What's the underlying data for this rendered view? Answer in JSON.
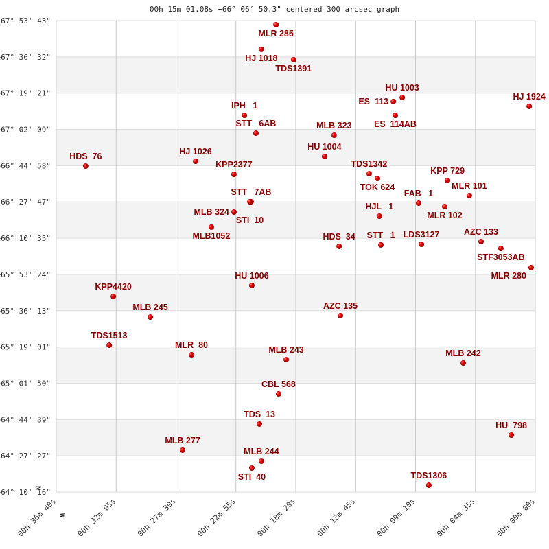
{
  "chart_data": {
    "type": "scatter",
    "title": "00h 15m 01.08s +66° 06′ 50.3\" centered 300 arcsec graph",
    "xlabel": "",
    "ylabel": "",
    "x_units": "right ascension seconds (time)",
    "y_units": "declination degrees",
    "xlim": [
      2200,
      0
    ],
    "ylim": [
      64.1711,
      67.8953
    ],
    "grid": true,
    "x_tick_labels": [
      "00h 36m 40s",
      "00h 32m 05s",
      "00h 27m 30s",
      "00h 22m 55s",
      "00h 18m 20s",
      "00h 13m 45s",
      "00h 09m 10s",
      "00h 04m 35s",
      "00h 00m 00s"
    ],
    "y_tick_labels": [
      "+67° 53' 43\"",
      "+67° 36' 32\"",
      "+67° 19' 21\"",
      "+67° 02' 09\"",
      "+66° 44' 58\"",
      "+66° 27' 47\"",
      "+66° 10' 35\"",
      "+65° 53' 24\"",
      "+65° 36' 13\"",
      "+65° 19' 01\"",
      "+65° 01' 50\"",
      "+64° 44' 39\"",
      "+64° 27' 27\"",
      "+64° 10' 16\""
    ],
    "direction_labels": {
      "north": "N",
      "west": "W"
    },
    "colors": {
      "point": "#dd0000",
      "label": "#8b0000",
      "band": "#f3f3f3",
      "grid": "#cccccc"
    },
    "points": [
      {
        "name": "MLR 285",
        "ra": 1191,
        "dec": 67.863
      },
      {
        "name": "HJ 1018",
        "ra": 1258,
        "dec": 67.668
      },
      {
        "name": "TDS1391",
        "ra": 1110,
        "dec": 67.586
      },
      {
        "name": "HU 1003",
        "ra": 611,
        "dec": 67.288
      },
      {
        "name": "ES  113",
        "ra": 652,
        "dec": 67.256
      },
      {
        "name": "ES  114AB",
        "ra": 643,
        "dec": 67.147
      },
      {
        "name": "HJ 1924",
        "ra": 28,
        "dec": 67.218
      },
      {
        "name": "IPH   1",
        "ra": 1336,
        "dec": 67.147
      },
      {
        "name": "STT   6AB",
        "ra": 1283,
        "dec": 67.006
      },
      {
        "name": "MLB 323",
        "ra": 924,
        "dec": 66.99
      },
      {
        "name": "HU 1004",
        "ra": 968,
        "dec": 66.822
      },
      {
        "name": "HDS  76",
        "ra": 2065,
        "dec": 66.746
      },
      {
        "name": "HJ 1026",
        "ra": 1560,
        "dec": 66.784
      },
      {
        "name": "KPP2377",
        "ra": 1384,
        "dec": 66.681
      },
      {
        "name": "TDS1342",
        "ra": 763,
        "dec": 66.686
      },
      {
        "name": "TOK 624",
        "ra": 725,
        "dec": 66.648
      },
      {
        "name": "KPP 729",
        "ra": 403,
        "dec": 66.632
      },
      {
        "name": "MLR 101",
        "ra": 303,
        "dec": 66.513
      },
      {
        "name": "STT   7AB",
        "ra": 1305,
        "dec": 66.464
      },
      {
        "name": "STI  10",
        "ra": 1311,
        "dec": 66.464
      },
      {
        "name": "MLB 324",
        "ra": 1384,
        "dec": 66.383
      },
      {
        "name": "FAB   1",
        "ra": 536,
        "dec": 66.453
      },
      {
        "name": "MLR 102",
        "ra": 416,
        "dec": 66.426
      },
      {
        "name": "HJL   1",
        "ra": 716,
        "dec": 66.35
      },
      {
        "name": "MLB1052",
        "ra": 1488,
        "dec": 66.264
      },
      {
        "name": "HDS  34",
        "ra": 901,
        "dec": 66.112
      },
      {
        "name": "STT   1",
        "ra": 709,
        "dec": 66.123
      },
      {
        "name": "LDS3127",
        "ra": 523,
        "dec": 66.128
      },
      {
        "name": "AZC 133",
        "ra": 249,
        "dec": 66.15
      },
      {
        "name": "STF3053AB",
        "ra": 158,
        "dec": 66.095
      },
      {
        "name": "MLR 280",
        "ra": 19,
        "dec": 65.944
      },
      {
        "name": "HU 1006",
        "ra": 1302,
        "dec": 65.803
      },
      {
        "name": "KPP4420",
        "ra": 1938,
        "dec": 65.716
      },
      {
        "name": "MLB 245",
        "ra": 1768,
        "dec": 65.553
      },
      {
        "name": "AZC 135",
        "ra": 895,
        "dec": 65.564
      },
      {
        "name": "TDS1513",
        "ra": 1957,
        "dec": 65.331
      },
      {
        "name": "MLR  80",
        "ra": 1579,
        "dec": 65.255
      },
      {
        "name": "MLB 243",
        "ra": 1144,
        "dec": 65.217
      },
      {
        "name": "MLB 242",
        "ra": 331,
        "dec": 65.19
      },
      {
        "name": "CBL 568",
        "ra": 1179,
        "dec": 64.946
      },
      {
        "name": "TDS  13",
        "ra": 1267,
        "dec": 64.708
      },
      {
        "name": "HU  798",
        "ra": 110,
        "dec": 64.621
      },
      {
        "name": "MLB 277",
        "ra": 1620,
        "dec": 64.502
      },
      {
        "name": "MLB 244",
        "ra": 1258,
        "dec": 64.415
      },
      {
        "name": "STI  40",
        "ra": 1302,
        "dec": 64.361
      },
      {
        "name": "TDS1306",
        "ra": 489,
        "dec": 64.225
      }
    ]
  }
}
